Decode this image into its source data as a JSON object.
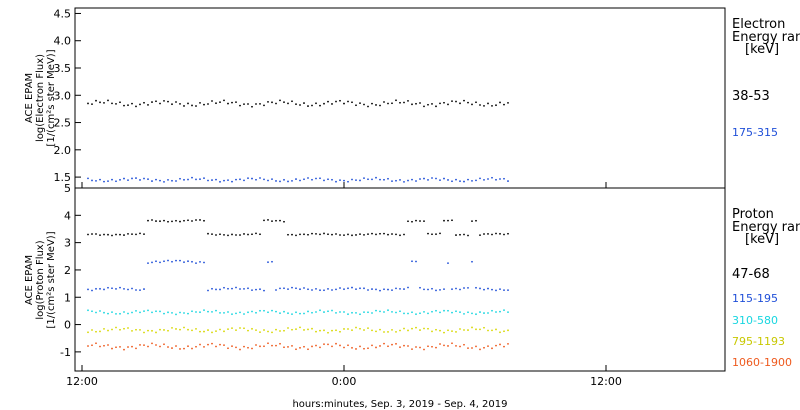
{
  "chart_data": [
    {
      "type": "scatter",
      "panel": "electron",
      "ylabel_lines": [
        "ACE EPAM",
        "log(Electron Flux)",
        "[1/(cm²s ster MeV)]"
      ],
      "yticks": [
        "1.5",
        "2.0",
        "2.5",
        "3.0",
        "3.5",
        "4.0",
        "4.5"
      ],
      "ylim": [
        1.3,
        4.6
      ],
      "legend_title": [
        "Electron",
        "Energy ranges",
        "[keV]"
      ],
      "series": [
        {
          "name": "38-53",
          "color": "#000000",
          "base": 2.85,
          "noise": 0.06
        },
        {
          "name": "175-315",
          "color": "#1f4fd8",
          "base": 1.45,
          "noise": 0.04
        }
      ]
    },
    {
      "type": "scatter",
      "panel": "proton",
      "ylabel_lines": [
        "ACE EPAM",
        "log(Proton Flux)",
        "[1/(cm²s ster MeV)]"
      ],
      "yticks": [
        "-1",
        "0",
        "1",
        "2",
        "3",
        "4",
        "5"
      ],
      "ylim": [
        -1.7,
        5.0
      ],
      "legend_title": [
        "Proton",
        "Energy ranges",
        "[keV]"
      ],
      "series": [
        {
          "name": "47-68",
          "color": "#000000",
          "base": 3.3,
          "noise": 0.04
        },
        {
          "name": "115-195",
          "color": "#1f4fd8",
          "base": 1.3,
          "noise": 0.06
        },
        {
          "name": "310-580",
          "color": "#19d6e0",
          "base": 0.45,
          "noise": 0.08
        },
        {
          "name": "795-1193",
          "color": "#d8d800",
          "base": -0.2,
          "noise": 0.1
        },
        {
          "name": "1060-1900",
          "color": "#ee5a1e",
          "base": -0.8,
          "noise": 0.12
        }
      ]
    }
  ],
  "xaxis": {
    "ticks": [
      "12:00",
      "0:00",
      "12:00"
    ],
    "label": "hours:minutes, Sep.  3, 2019 - Sep.  4, 2019"
  }
}
